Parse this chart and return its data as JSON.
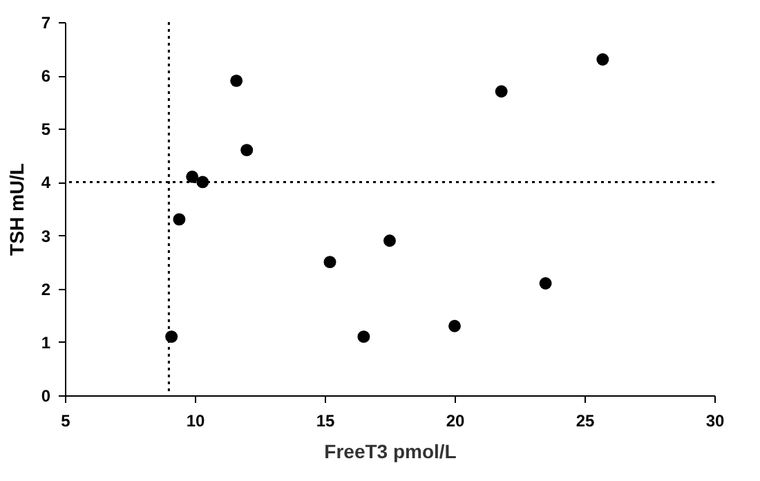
{
  "chart_data": {
    "type": "scatter",
    "xlabel": "FreeT3 pmol/L",
    "ylabel": "TSH mU/L",
    "x": [
      9.1,
      9.4,
      9.9,
      10.3,
      11.6,
      12.0,
      15.2,
      16.5,
      17.5,
      20.0,
      21.8,
      23.5,
      25.7
    ],
    "series": [
      {
        "color": "#000000",
        "values": [
          1.1,
          3.3,
          4.1,
          4.0,
          5.9,
          4.6,
          2.5,
          1.1,
          2.9,
          1.3,
          5.7,
          2.1,
          6.3
        ]
      }
    ],
    "xlim": [
      5,
      30
    ],
    "ylim": [
      0,
      7
    ],
    "xticks": [
      5,
      10,
      15,
      20,
      25,
      30
    ],
    "yticks": [
      0,
      1,
      2,
      3,
      4,
      5,
      6,
      7
    ],
    "ref_lines": [
      {
        "axis": "x",
        "value": 9,
        "color": "#000000",
        "line_style": "dotted"
      },
      {
        "axis": "y",
        "value": 4,
        "color": "#000000",
        "line_style": "dotted"
      }
    ],
    "marker": "circle",
    "grid": false
  }
}
